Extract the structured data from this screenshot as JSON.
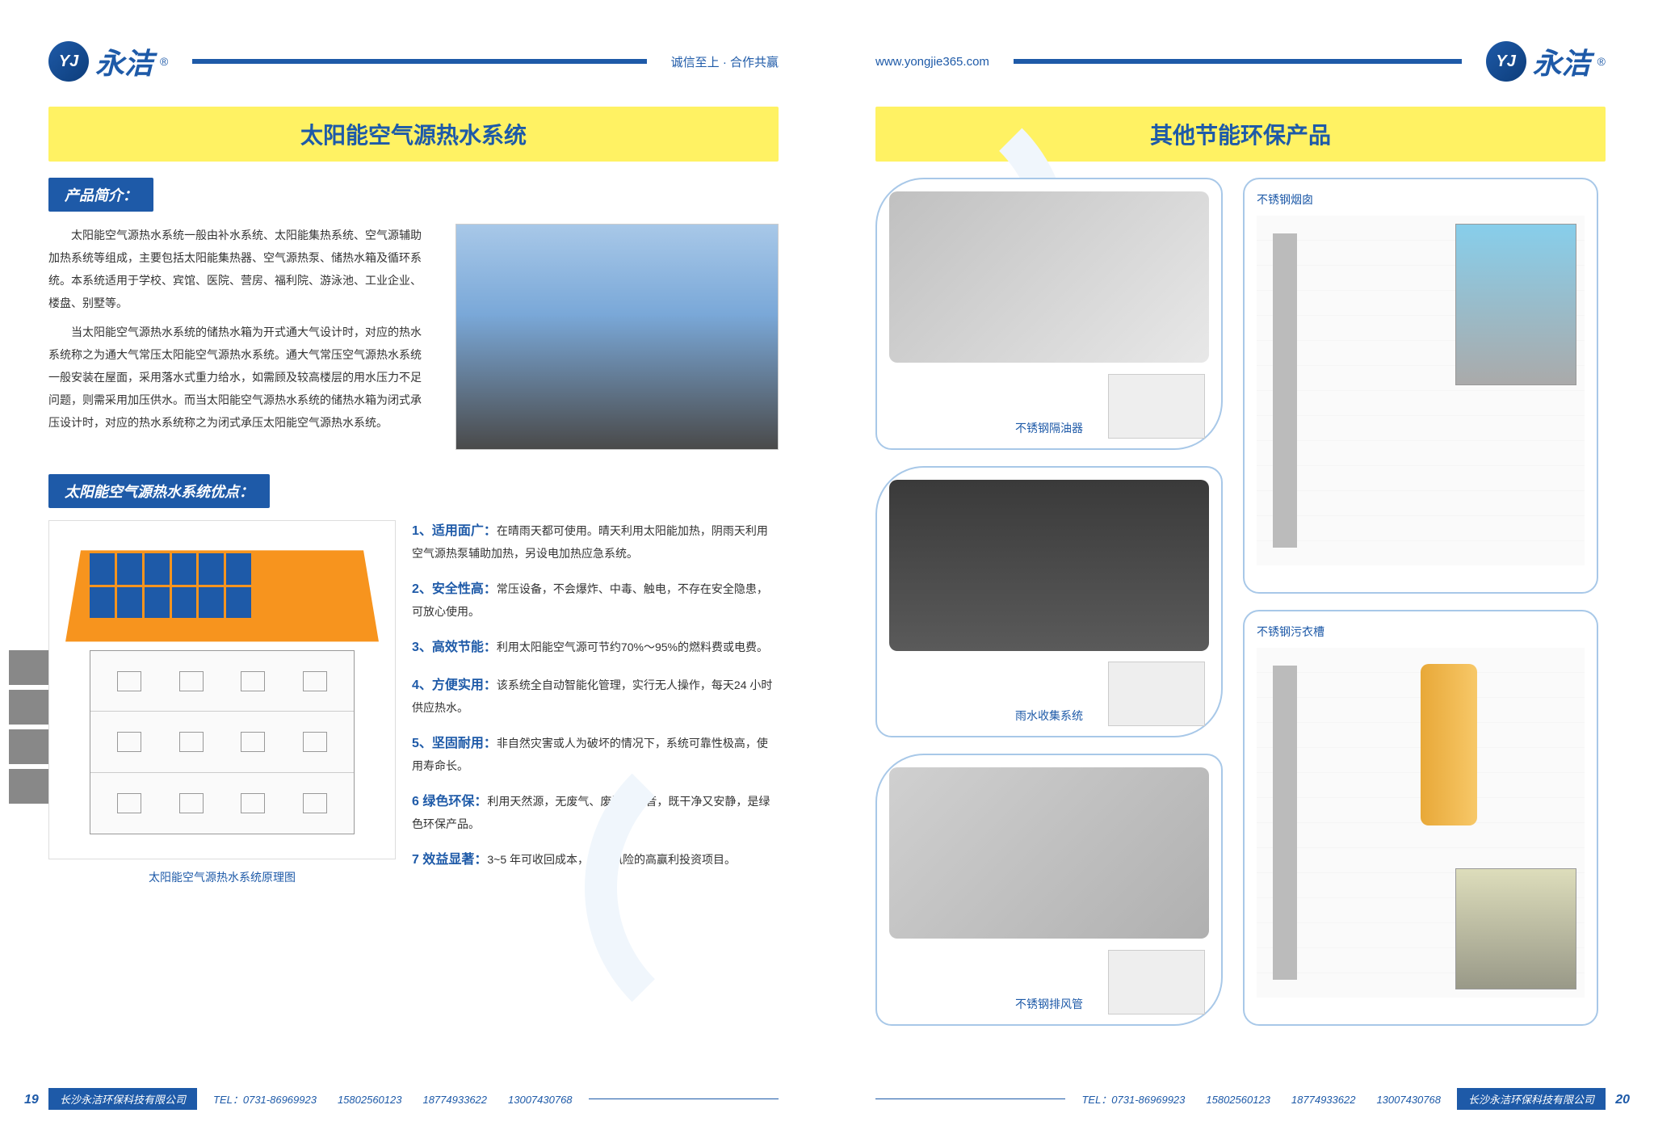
{
  "brand": "永洁",
  "logo_mono": "YJ",
  "header_slogan": "诚信至上 · 合作共赢",
  "website": "www.yongjie365.com",
  "colors": {
    "primary": "#1e5aa8",
    "accent_yellow": "#fff263",
    "accent_orange": "#f7941e",
    "light_blue": "#a8c8e8",
    "bg_curve": "#f0f6fc",
    "text": "#333333"
  },
  "left_page": {
    "number": "19",
    "title": "太阳能空气源热水系统",
    "intro_label": "产品简介：",
    "intro_p1": "太阳能空气源热水系统一般由补水系统、太阳能集热系统、空气源辅助加热系统等组成，主要包括太阳能集热器、空气源热泵、储热水箱及循环系统。本系统适用于学校、宾馆、医院、营房、福利院、游泳池、工业企业、楼盘、别墅等。",
    "intro_p2": "当太阳能空气源热水系统的储热水箱为开式通大气设计时，对应的热水系统称之为通大气常压太阳能空气源热水系统。通大气常压空气源热水系统一般安装在屋面，采用落水式重力给水，如需顾及较高楼层的用水压力不足问题，则需采用加压供水。而当太阳能空气源热水系统的储热水箱为闭式承压设计时，对应的热水系统称之为闭式承压太阳能空气源热水系统。",
    "adv_label": "太阳能空气源热水系统优点：",
    "diagram_caption": "太阳能空气源热水系统原理图",
    "advantages": [
      {
        "num": "1、",
        "title": "适用面广：",
        "text": "在晴雨天都可使用。晴天利用太阳能加热，阴雨天利用空气源热泵辅助加热，另设电加热应急系统。"
      },
      {
        "num": "2、",
        "title": "安全性高：",
        "text": "常压设备，不会爆炸、中毒、触电，不存在安全隐患，可放心使用。"
      },
      {
        "num": "3、",
        "title": "高效节能：",
        "text": "利用太阳能空气源可节约70%～95%的燃料费或电费。"
      },
      {
        "num": "4、",
        "title": "方便实用：",
        "text": "该系统全自动智能化管理，实行无人操作，每天24 小时供应热水。"
      },
      {
        "num": "5、",
        "title": "坚固耐用：",
        "text": "非自然灾害或人为破坏的情况下，系统可靠性极高，使用寿命长。"
      },
      {
        "num": "6",
        "title": " 绿色环保：",
        "text": "利用天然源，无废气、废渣、噪音，既干净又安静，是绿色环保产品。"
      },
      {
        "num": "7",
        "title": " 效益显著：",
        "text": "3~5 年可收回成本，是无风险的高赢利投资项目。"
      }
    ]
  },
  "right_page": {
    "number": "20",
    "title": "其他节能环保产品",
    "products": [
      {
        "label": "不锈钢隔油器"
      },
      {
        "label": "雨水收集系统"
      },
      {
        "label": "不锈钢排风管"
      }
    ],
    "diagrams": [
      {
        "title": "不锈钢烟囱"
      },
      {
        "title": "不锈钢污衣槽"
      }
    ]
  },
  "footer": {
    "company_left": "长沙永洁环保科技有限公司",
    "company_right": "长沙永洁环保科技有限公司",
    "tel_label": "TEL：",
    "phones": [
      "0731-86969923",
      "15802560123",
      "18774933622",
      "13007430768"
    ]
  }
}
